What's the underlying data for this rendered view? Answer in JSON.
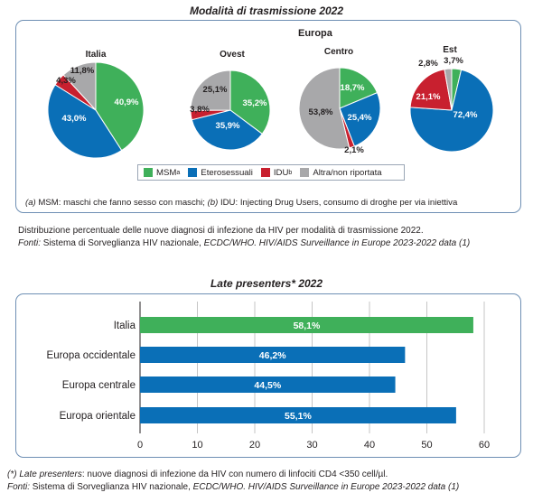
{
  "top": {
    "title": "Modalità di trasmissione 2022",
    "europa_label": "Europa",
    "charts": [
      {
        "label": "Italia",
        "values": [
          40.9,
          43.0,
          4.3,
          11.8
        ],
        "labels": [
          "40,9%",
          "43,0%",
          "4,3%",
          "11,8%"
        ]
      },
      {
        "label": "Ovest",
        "values": [
          35.2,
          35.9,
          3.8,
          25.1
        ],
        "labels": [
          "35,2%",
          "35,9%",
          "3,8%",
          "25,1%"
        ]
      },
      {
        "label": "Centro",
        "values": [
          18.7,
          25.4,
          2.1,
          53.8
        ],
        "labels": [
          "18,7%",
          "25,4%",
          "2,1%",
          "53,8%"
        ]
      },
      {
        "label": "Est",
        "values": [
          3.7,
          72.4,
          21.1,
          2.8
        ],
        "labels": [
          "3,7%",
          "72,4%",
          "21,1%",
          "2,8%"
        ]
      }
    ],
    "legend": [
      {
        "label": "MSM",
        "sup": "a",
        "color": "#3fb05a"
      },
      {
        "label": "Eterosessuali",
        "sup": "",
        "color": "#0a6fb7"
      },
      {
        "label": "IDU",
        "sup": "b",
        "color": "#c8202f"
      },
      {
        "label": "Altra/non riportata",
        "sup": "",
        "color": "#a8a8aa"
      }
    ],
    "note_a": "(a)",
    "note_text_a": " MSM: maschi che fanno sesso con maschi; ",
    "note_b": "(b)",
    "note_text_b": " IDU: Injecting Drug Users, consumo di droghe per via iniettiva",
    "caption_line1": "Distribuzione percentuale delle nuove diagnosi di infezione da HIV per modalità di trasmissione 2022.",
    "caption_fonti": "Fonti:",
    "caption_line2a": " Sistema di Sorveglianza HIV nazionale, ",
    "caption_line2b": "ECDC/WHO. HIV/AIDS Surveillance in Europe 2023-2022 data (1)"
  },
  "bottom": {
    "title": "Late presenters* 2022",
    "bar_colors": {
      "italia": "#3fb05a",
      "europa": "#0a6fb7"
    },
    "foot_line1a": "(*) Late presenters",
    "foot_line1b": ": nuove diagnosi di infezione da HIV con numero di linfociti CD4 <350 cell/µl.",
    "foot_fonti": "Fonti:",
    "foot_line2a": " Sistema di Sorveglianza HIV nazionale, ",
    "foot_line2b": "ECDC/WHO. HIV/AIDS Surveillance in Europe 2023-2022 data (1)"
  },
  "chart_data": [
    {
      "type": "pie",
      "title": "Modalità di trasmissione 2022",
      "categories": [
        "MSM",
        "Eterosessuali",
        "IDU",
        "Altra/non riportata"
      ],
      "series": [
        {
          "name": "Italia",
          "values": [
            40.9,
            43.0,
            4.3,
            11.8
          ]
        },
        {
          "name": "Ovest",
          "values": [
            35.2,
            35.9,
            3.8,
            25.1
          ]
        },
        {
          "name": "Centro",
          "values": [
            18.7,
            25.4,
            2.1,
            53.8
          ]
        },
        {
          "name": "Est",
          "values": [
            3.7,
            72.4,
            21.1,
            2.8
          ]
        }
      ]
    },
    {
      "type": "bar",
      "title": "Late presenters* 2022",
      "orientation": "horizontal",
      "categories": [
        "Italia",
        "Europa occidentale",
        "Europa centrale",
        "Europa orientale"
      ],
      "values": [
        58.1,
        46.2,
        44.5,
        55.1
      ],
      "value_labels": [
        "58,1%",
        "46,2%",
        "44,5%",
        "55,1%"
      ],
      "xlim": [
        0,
        60
      ],
      "xticks": [
        "0",
        "10",
        "20",
        "30",
        "40",
        "50",
        "60"
      ],
      "grid": true
    }
  ]
}
